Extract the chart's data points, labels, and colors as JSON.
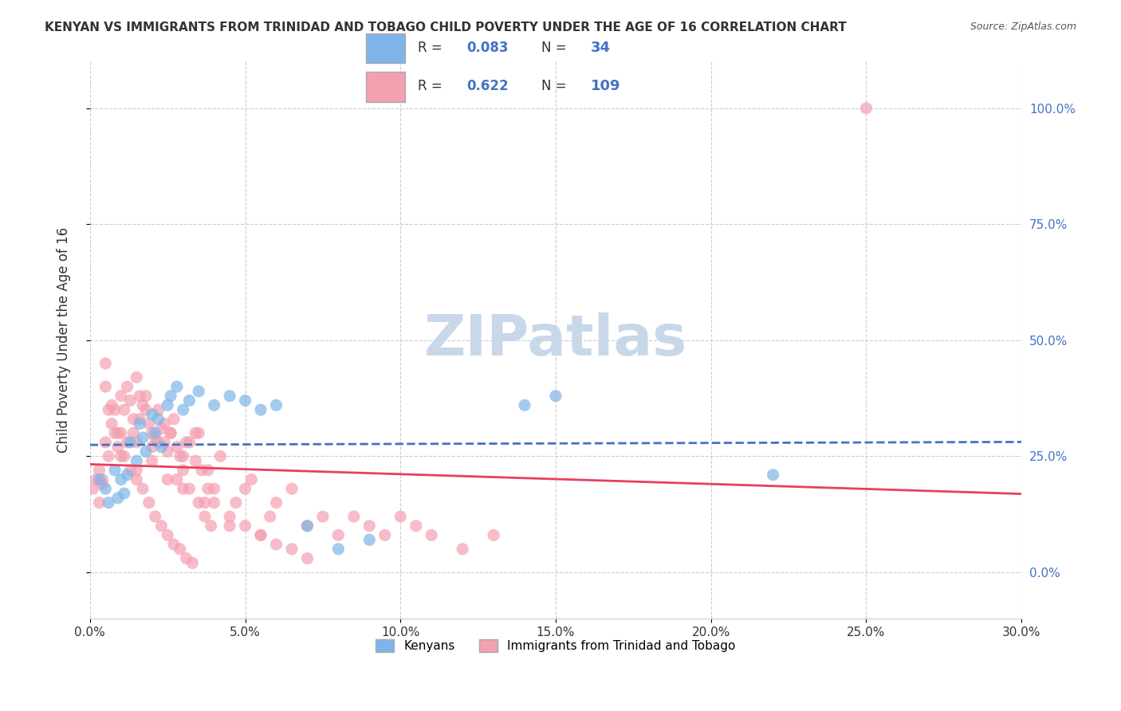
{
  "title": "KENYAN VS IMMIGRANTS FROM TRINIDAD AND TOBAGO CHILD POVERTY UNDER THE AGE OF 16 CORRELATION CHART",
  "source": "Source: ZipAtlas.com",
  "ylabel": "Child Poverty Under the Age of 16",
  "xlabel_ticks": [
    "0.0%",
    "5.0%",
    "10.0%",
    "15.0%",
    "20.0%",
    "25.0%",
    "30.0%"
  ],
  "xlabel_vals": [
    0.0,
    5.0,
    10.0,
    15.0,
    20.0,
    25.0,
    30.0
  ],
  "ylabel_ticks": [
    "0.0%",
    "25.0%",
    "50.0%",
    "75.0%",
    "100.0%"
  ],
  "ylabel_vals": [
    0.0,
    25.0,
    50.0,
    75.0,
    100.0
  ],
  "xmin": 0.0,
  "xmax": 30.0,
  "ymin": -10.0,
  "ymax": 110.0,
  "kenyan_color": "#7EB5E8",
  "trinidad_color": "#F4A0B0",
  "kenyan_R": 0.083,
  "kenyan_N": 34,
  "trinidad_R": 0.622,
  "trinidad_N": 109,
  "legend_label_1": "Kenyans",
  "legend_label_2": "Immigrants from Trinidad and Tobago",
  "watermark": "ZIPatlas",
  "watermark_color": "#C8D8E8",
  "kenyan_x": [
    0.3,
    0.5,
    0.6,
    0.8,
    0.9,
    1.0,
    1.1,
    1.2,
    1.3,
    1.5,
    1.6,
    1.7,
    1.8,
    2.0,
    2.1,
    2.2,
    2.3,
    2.5,
    2.6,
    2.8,
    3.0,
    3.2,
    3.5,
    4.0,
    4.5,
    5.0,
    5.5,
    6.0,
    7.0,
    8.0,
    9.0,
    14.0,
    15.0,
    22.0
  ],
  "kenyan_y": [
    20.0,
    18.0,
    15.0,
    22.0,
    16.0,
    20.0,
    17.0,
    21.0,
    28.0,
    24.0,
    32.0,
    29.0,
    26.0,
    34.0,
    30.0,
    33.0,
    27.0,
    36.0,
    38.0,
    40.0,
    35.0,
    37.0,
    39.0,
    36.0,
    38.0,
    37.0,
    35.0,
    36.0,
    10.0,
    5.0,
    7.0,
    36.0,
    38.0,
    21.0
  ],
  "trinidad_x": [
    0.1,
    0.2,
    0.3,
    0.4,
    0.5,
    0.5,
    0.6,
    0.7,
    0.8,
    0.9,
    1.0,
    1.0,
    1.1,
    1.2,
    1.3,
    1.4,
    1.5,
    1.5,
    1.6,
    1.7,
    1.8,
    1.9,
    2.0,
    2.1,
    2.2,
    2.3,
    2.4,
    2.5,
    2.6,
    2.7,
    2.8,
    2.9,
    3.0,
    3.1,
    3.2,
    3.4,
    3.5,
    3.7,
    3.8,
    4.0,
    4.2,
    4.5,
    4.7,
    5.0,
    5.2,
    5.5,
    5.8,
    6.0,
    6.5,
    7.0,
    7.5,
    8.0,
    8.5,
    9.0,
    9.5,
    10.0,
    10.5,
    11.0,
    12.0,
    13.0,
    0.3,
    0.4,
    0.6,
    0.8,
    1.0,
    1.2,
    1.4,
    1.6,
    1.8,
    2.0,
    2.2,
    2.4,
    2.6,
    2.8,
    3.0,
    3.2,
    3.4,
    3.6,
    3.8,
    4.0,
    4.5,
    5.0,
    5.5,
    6.0,
    6.5,
    7.0,
    1.5,
    2.0,
    2.5,
    3.0,
    0.5,
    0.7,
    0.9,
    1.1,
    1.3,
    1.5,
    1.7,
    1.9,
    2.1,
    2.3,
    2.5,
    2.7,
    2.9,
    3.1,
    3.3,
    3.5,
    3.7,
    3.9,
    25.0
  ],
  "trinidad_y": [
    18.0,
    20.0,
    22.0,
    19.0,
    45.0,
    28.0,
    35.0,
    32.0,
    30.0,
    27.0,
    38.0,
    25.0,
    35.0,
    40.0,
    37.0,
    30.0,
    28.0,
    42.0,
    33.0,
    36.0,
    38.0,
    32.0,
    27.0,
    29.0,
    35.0,
    31.0,
    28.0,
    26.0,
    30.0,
    33.0,
    20.0,
    25.0,
    22.0,
    28.0,
    18.0,
    24.0,
    30.0,
    15.0,
    22.0,
    18.0,
    25.0,
    10.0,
    15.0,
    18.0,
    20.0,
    8.0,
    12.0,
    15.0,
    18.0,
    10.0,
    12.0,
    8.0,
    12.0,
    10.0,
    8.0,
    12.0,
    10.0,
    8.0,
    5.0,
    8.0,
    15.0,
    20.0,
    25.0,
    35.0,
    30.0,
    28.0,
    33.0,
    38.0,
    35.0,
    30.0,
    28.0,
    32.0,
    30.0,
    27.0,
    25.0,
    28.0,
    30.0,
    22.0,
    18.0,
    15.0,
    12.0,
    10.0,
    8.0,
    6.0,
    5.0,
    3.0,
    22.0,
    24.0,
    20.0,
    18.0,
    40.0,
    36.0,
    30.0,
    25.0,
    22.0,
    20.0,
    18.0,
    15.0,
    12.0,
    10.0,
    8.0,
    6.0,
    5.0,
    3.0,
    2.0,
    15.0,
    12.0,
    10.0,
    100.0
  ]
}
